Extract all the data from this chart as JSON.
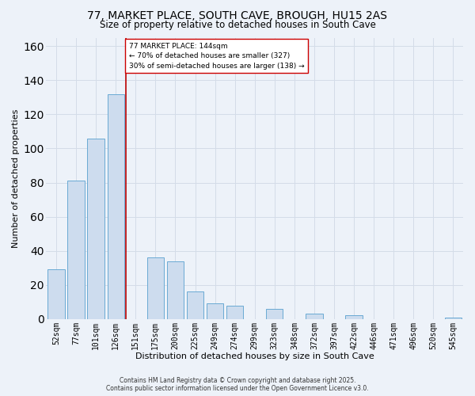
{
  "title": "77, MARKET PLACE, SOUTH CAVE, BROUGH, HU15 2AS",
  "subtitle": "Size of property relative to detached houses in South Cave",
  "xlabel": "Distribution of detached houses by size in South Cave",
  "ylabel": "Number of detached properties",
  "categories": [
    "52sqm",
    "77sqm",
    "101sqm",
    "126sqm",
    "151sqm",
    "175sqm",
    "200sqm",
    "225sqm",
    "249sqm",
    "274sqm",
    "299sqm",
    "323sqm",
    "348sqm",
    "372sqm",
    "397sqm",
    "422sqm",
    "446sqm",
    "471sqm",
    "496sqm",
    "520sqm",
    "545sqm"
  ],
  "values": [
    29,
    81,
    106,
    132,
    0,
    36,
    34,
    16,
    9,
    8,
    0,
    6,
    0,
    3,
    0,
    2,
    0,
    0,
    0,
    0,
    1
  ],
  "bar_color": "#cddcee",
  "bar_edge_color": "#6aaad4",
  "marker_bin_index": 4,
  "marker_line_color": "#bb0000",
  "annotation_text": "77 MARKET PLACE: 144sqm\n← 70% of detached houses are smaller (327)\n30% of semi-detached houses are larger (138) →",
  "annotation_box_color": "#ffffff",
  "annotation_box_edge": "#cc0000",
  "ylim": [
    0,
    165
  ],
  "yticks": [
    0,
    20,
    40,
    60,
    80,
    100,
    120,
    140,
    160
  ],
  "grid_color": "#d4dce8",
  "background_color": "#edf2f9",
  "footer_line1": "Contains HM Land Registry data © Crown copyright and database right 2025.",
  "footer_line2": "Contains public sector information licensed under the Open Government Licence v3.0.",
  "title_fontsize": 10,
  "subtitle_fontsize": 8.5,
  "axis_label_fontsize": 8,
  "tick_fontsize": 7,
  "footer_fontsize": 5.5
}
